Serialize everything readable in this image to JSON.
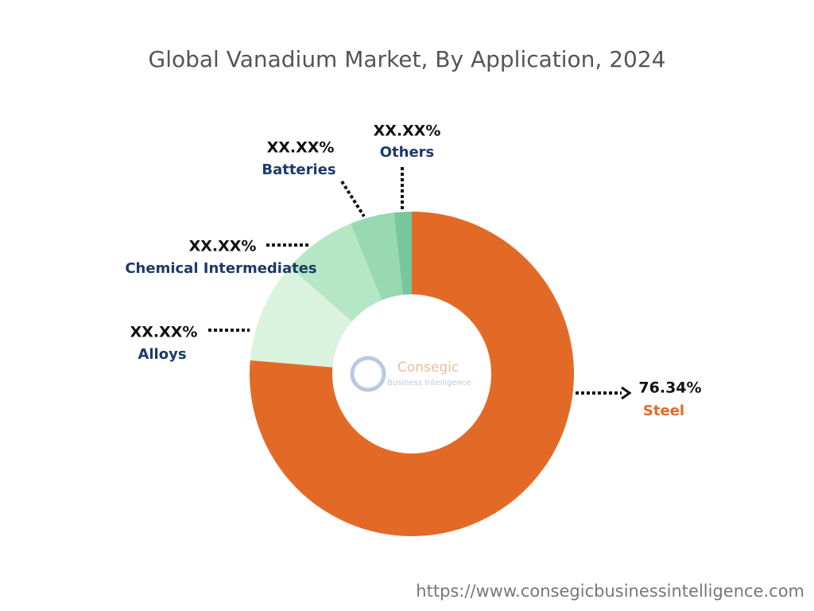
{
  "chart_data": {
    "type": "donut",
    "title": "Global Vanadium Market, By Application, 2024",
    "categories": [
      "Steel",
      "Alloys",
      "Chemical Intermediates",
      "Batteries",
      "Others"
    ],
    "values": [
      76.34,
      10.1,
      7.4,
      4.4,
      1.76
    ],
    "value_labels": [
      "76.34%",
      "XX.XX%",
      "XX.XX%",
      "XX.XX%",
      "XX.XX%"
    ],
    "colors": [
      "#e36a26",
      "#daf3df",
      "#b6e7c5",
      "#98d9b2",
      "#76c79c"
    ],
    "watermark": [
      "Consegic",
      "Business Intelligence"
    ],
    "source": "https://www.consegicbusinessintelligence.com"
  }
}
